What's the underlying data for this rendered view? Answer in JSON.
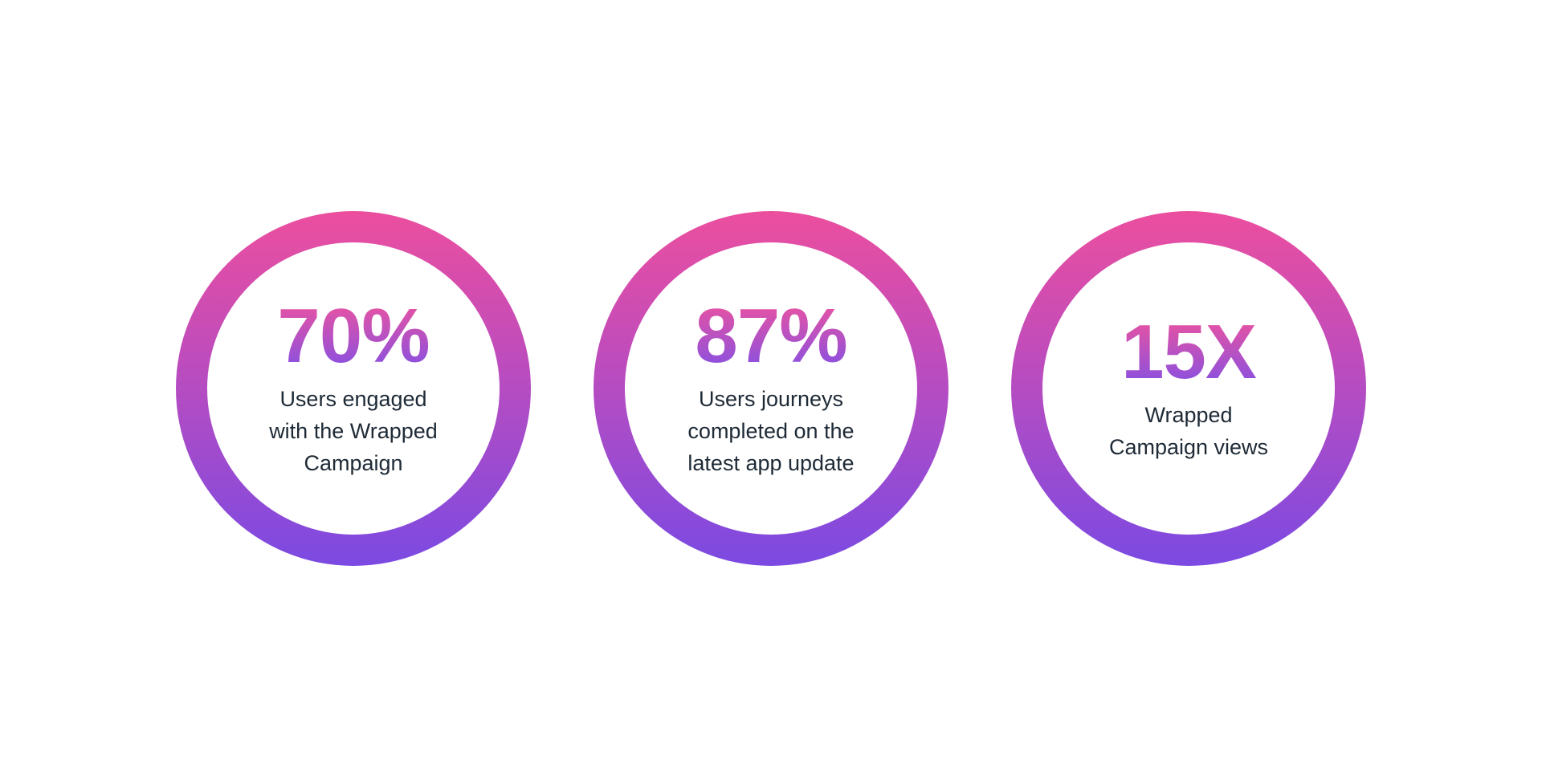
{
  "colors": {
    "background": "#ffffff",
    "ring_gradient_top": "#EC4E9E",
    "ring_gradient_bottom": "#7B4AE2",
    "value_gradient_top": "#F0539D",
    "value_gradient_bottom": "#8050E6",
    "description_text": "#1E2A36"
  },
  "stats": [
    {
      "value": "70%",
      "lines": [
        "Users engaged",
        "with the Wrapped",
        "Campaign"
      ]
    },
    {
      "value": "87%",
      "lines": [
        "Users journeys",
        "completed on the",
        "latest app update"
      ]
    },
    {
      "value": "15X",
      "lines": [
        "Wrapped",
        "Campaign views"
      ]
    }
  ],
  "chart_data": {
    "type": "table",
    "categories": [
      "Users engaged with the Wrapped Campaign",
      "Users journeys completed on the latest app update",
      "Wrapped Campaign views"
    ],
    "values": [
      "70%",
      "87%",
      "15X"
    ],
    "values_numeric": [
      70,
      87,
      15
    ],
    "units": [
      "%",
      "%",
      "x"
    ],
    "legend_position": "none",
    "notes": "Three KPI stat rings, pink-to-purple gradient strokes on white background"
  }
}
